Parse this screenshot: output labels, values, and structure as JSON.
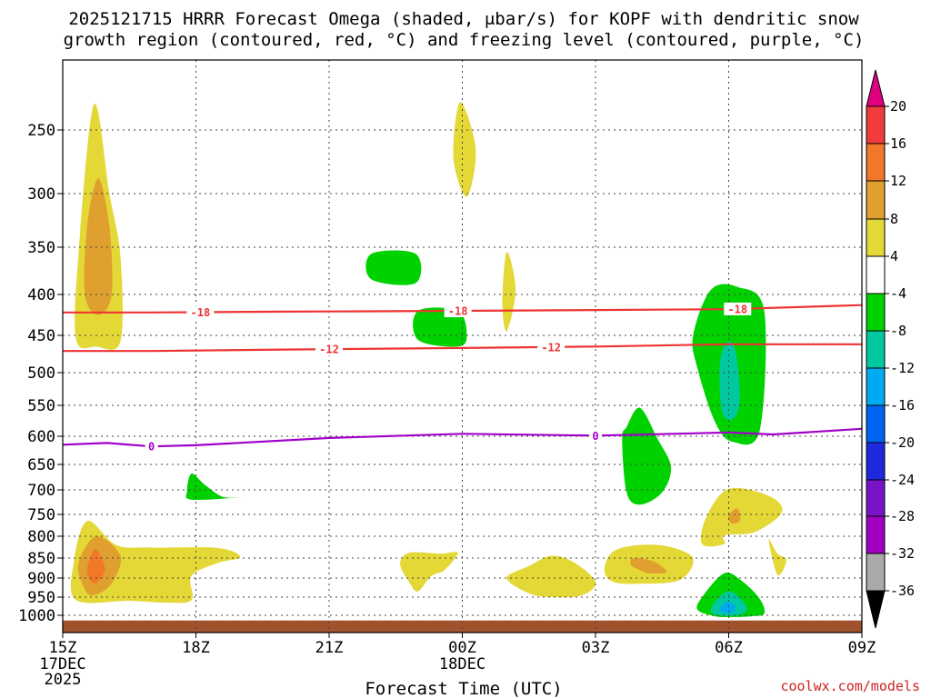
{
  "chart_data": {
    "type": "heatmap",
    "title_line1": "2025121715 HRRR Forecast Omega (shaded, μbar/s) for KOPF with dendritic snow",
    "title_line2": "growth region (contoured, red, °C) and freezing level (contoured, purple, °C)",
    "xlabel": "Forecast Time (UTC)",
    "credit": "coolwx.com/models",
    "x_range_hours": [
      0,
      18
    ],
    "x_ticks": [
      {
        "hour": 0,
        "label": "15Z",
        "sub1": "17DEC",
        "sub2": "2025"
      },
      {
        "hour": 3,
        "label": "18Z",
        "sub1": "",
        "sub2": ""
      },
      {
        "hour": 6,
        "label": "21Z",
        "sub1": "",
        "sub2": ""
      },
      {
        "hour": 9,
        "label": "00Z",
        "sub1": "18DEC",
        "sub2": ""
      },
      {
        "hour": 12,
        "label": "03Z",
        "sub1": "",
        "sub2": ""
      },
      {
        "hour": 15,
        "label": "06Z",
        "sub1": "",
        "sub2": ""
      },
      {
        "hour": 18,
        "label": "09Z",
        "sub1": "",
        "sub2": ""
      }
    ],
    "y_range_hpa": [
      1050,
      195
    ],
    "y_ticks": [
      {
        "p": 250,
        "label": "250"
      },
      {
        "p": 300,
        "label": "300"
      },
      {
        "p": 350,
        "label": "350"
      },
      {
        "p": 400,
        "label": "400"
      },
      {
        "p": 450,
        "label": "450"
      },
      {
        "p": 500,
        "label": "500"
      },
      {
        "p": 550,
        "label": "550"
      },
      {
        "p": 600,
        "label": "600"
      },
      {
        "p": 650,
        "label": "650"
      },
      {
        "p": 700,
        "label": "700"
      },
      {
        "p": 750,
        "label": "750"
      },
      {
        "p": 800,
        "label": "800"
      },
      {
        "p": 850,
        "label": "850"
      },
      {
        "p": 900,
        "label": "900"
      },
      {
        "p": 950,
        "label": "950"
      },
      {
        "p": 1000,
        "label": "1000"
      }
    ],
    "colorbar": {
      "labels": [
        "20",
        "16",
        "12",
        "8",
        "4",
        "-4",
        "-8",
        "-12",
        "-16",
        "-20",
        "-24",
        "-28",
        "-32",
        "-36"
      ],
      "colors": [
        "#e0007f",
        "#f03c3c",
        "#f07828",
        "#e0a030",
        "#e4d836",
        "#ffffff",
        "#00d200",
        "#00c8a0",
        "#00aaf0",
        "#0064f0",
        "#1e28dc",
        "#7814c8",
        "#a000c0",
        "#aaaaaa",
        "#000000"
      ]
    },
    "contours": [
      {
        "name": "dgz-minus18",
        "label": "-18",
        "color": "#ee3333",
        "points": [
          [
            0,
            422
          ],
          [
            2,
            422
          ],
          [
            5,
            421
          ],
          [
            9,
            420
          ],
          [
            12,
            419
          ],
          [
            15,
            418
          ],
          [
            18,
            413
          ]
        ],
        "label_hours": [
          3.1,
          8.9,
          15.2
        ]
      },
      {
        "name": "dgz-minus12",
        "label": "-12",
        "color": "#ee3333",
        "points": [
          [
            0,
            471
          ],
          [
            2,
            471
          ],
          [
            5,
            469
          ],
          [
            9,
            467
          ],
          [
            12,
            465
          ],
          [
            15,
            462
          ],
          [
            18,
            462
          ]
        ],
        "label_hours": [
          6,
          11
        ]
      },
      {
        "name": "freezing-level-0",
        "label": "0",
        "color": "#a000c8",
        "points": [
          [
            0,
            615
          ],
          [
            1,
            612
          ],
          [
            2,
            618
          ],
          [
            3,
            616
          ],
          [
            6,
            603
          ],
          [
            9,
            596
          ],
          [
            12,
            599
          ],
          [
            15,
            594
          ],
          [
            16,
            597
          ],
          [
            18,
            588
          ]
        ],
        "label_hours": [
          2,
          12
        ]
      }
    ],
    "shaded_regions": [
      {
        "name": "rise-4-early-upper",
        "value": 4,
        "points": [
          [
            0.3,
            455
          ],
          [
            0.35,
            360
          ],
          [
            0.7,
            230
          ],
          [
            1.05,
            300
          ],
          [
            1.3,
            360
          ],
          [
            1.3,
            458
          ],
          [
            0.75,
            465
          ]
        ]
      },
      {
        "name": "rise-8-early-upper",
        "value": 8,
        "points": [
          [
            0.5,
            400
          ],
          [
            0.55,
            330
          ],
          [
            0.8,
            288
          ],
          [
            1.05,
            330
          ],
          [
            1.1,
            400
          ],
          [
            0.8,
            425
          ]
        ]
      },
      {
        "name": "rise-4-00z-top",
        "value": 4,
        "points": [
          [
            8.8,
            272
          ],
          [
            8.95,
            228
          ],
          [
            9.3,
            265
          ],
          [
            9.1,
            303
          ]
        ]
      },
      {
        "name": "rise-4-01z-mid",
        "value": 4,
        "points": [
          [
            9.9,
            410
          ],
          [
            10.0,
            355
          ],
          [
            10.2,
            395
          ],
          [
            10.0,
            445
          ]
        ]
      },
      {
        "name": "rise-4-early-low",
        "value": 4,
        "points": [
          [
            0.3,
            958
          ],
          [
            0.25,
            860
          ],
          [
            0.55,
            765
          ],
          [
            1.2,
            820
          ],
          [
            2.0,
            826
          ],
          [
            3.5,
            827
          ],
          [
            4.0,
            848
          ],
          [
            3.5,
            862
          ],
          [
            2.9,
            895
          ],
          [
            2.9,
            958
          ],
          [
            2.3,
            965
          ],
          [
            1.5,
            960
          ]
        ]
      },
      {
        "name": "rise-8-early-low",
        "value": 8,
        "points": [
          [
            0.5,
            930
          ],
          [
            0.35,
            865
          ],
          [
            0.75,
            800
          ],
          [
            1.3,
            845
          ],
          [
            1.1,
            915
          ],
          [
            0.7,
            945
          ]
        ]
      },
      {
        "name": "rise-12-early-low",
        "value": 12,
        "points": [
          [
            0.55,
            885
          ],
          [
            0.6,
            855
          ],
          [
            0.75,
            830
          ],
          [
            0.95,
            875
          ],
          [
            0.8,
            910
          ],
          [
            0.65,
            910
          ]
        ]
      },
      {
        "name": "rise-4-2230z",
        "value": 4,
        "points": [
          [
            7.6,
            865
          ],
          [
            7.8,
            838
          ],
          [
            8.5,
            840
          ],
          [
            8.9,
            838
          ],
          [
            8.6,
            880
          ],
          [
            8.3,
            895
          ],
          [
            8.0,
            935
          ],
          [
            7.8,
            910
          ]
        ]
      },
      {
        "name": "rise-4-02z",
        "value": 4,
        "points": [
          [
            10.0,
            900
          ],
          [
            10.5,
            870
          ],
          [
            11.0,
            845
          ],
          [
            11.5,
            860
          ],
          [
            12.0,
            910
          ],
          [
            11.7,
            945
          ],
          [
            11.0,
            950
          ],
          [
            10.5,
            940
          ]
        ]
      },
      {
        "name": "rise-4-04z",
        "value": 4,
        "points": [
          [
            12.2,
            880
          ],
          [
            12.4,
            835
          ],
          [
            13.0,
            820
          ],
          [
            13.7,
            825
          ],
          [
            14.2,
            852
          ],
          [
            13.9,
            905
          ],
          [
            13.0,
            915
          ],
          [
            12.4,
            910
          ]
        ]
      },
      {
        "name": "rise-8-04z",
        "value": 8,
        "points": [
          [
            12.8,
            868
          ],
          [
            12.85,
            850
          ],
          [
            13.3,
            858
          ],
          [
            13.6,
            885
          ],
          [
            13.2,
            888
          ],
          [
            13.0,
            880
          ]
        ]
      },
      {
        "name": "rise-4-06z",
        "value": 4,
        "points": [
          [
            14.4,
            818
          ],
          [
            14.5,
            755
          ],
          [
            15.0,
            698
          ],
          [
            15.9,
            712
          ],
          [
            16.2,
            745
          ],
          [
            15.6,
            790
          ],
          [
            14.9,
            798
          ],
          [
            14.9,
            818
          ]
        ]
      },
      {
        "name": "rise-4-07z-tail",
        "value": 4,
        "points": [
          [
            15.9,
            808
          ],
          [
            16.1,
            840
          ],
          [
            16.3,
            855
          ],
          [
            16.1,
            892
          ]
        ]
      },
      {
        "name": "rise-8-06z-dot",
        "value": 8,
        "points": [
          [
            15.0,
            752
          ],
          [
            15.2,
            738
          ],
          [
            15.25,
            765
          ],
          [
            15.05,
            770
          ]
        ]
      },
      {
        "name": "sink-4-2230z",
        "value": -4,
        "points": [
          [
            6.95,
            357
          ],
          [
            7.95,
            357
          ],
          [
            7.95,
            388
          ],
          [
            6.95,
            384
          ]
        ]
      },
      {
        "name": "sink-4-00z",
        "value": -4,
        "points": [
          [
            8.0,
            420
          ],
          [
            8.9,
            420
          ],
          [
            9.1,
            450
          ],
          [
            8.9,
            465
          ],
          [
            8.0,
            456
          ]
        ]
      },
      {
        "name": "sink-4-18z",
        "value": -4,
        "points": [
          [
            2.8,
            702
          ],
          [
            2.9,
            668
          ],
          [
            3.2,
            690
          ],
          [
            3.6,
            714
          ],
          [
            4.0,
            715
          ],
          [
            2.9,
            720
          ]
        ]
      },
      {
        "name": "sink-4-04z",
        "value": -4,
        "points": [
          [
            12.6,
            605
          ],
          [
            12.7,
            585
          ],
          [
            13.0,
            554
          ],
          [
            13.4,
            605
          ],
          [
            13.7,
            655
          ],
          [
            13.5,
            705
          ],
          [
            13.0,
            730
          ],
          [
            12.7,
            705
          ]
        ]
      },
      {
        "name": "sink-4-06z",
        "value": -4,
        "points": [
          [
            14.2,
            450
          ],
          [
            14.6,
            395
          ],
          [
            15.2,
            392
          ],
          [
            15.8,
            420
          ],
          [
            15.7,
            590
          ],
          [
            15.1,
            610
          ],
          [
            14.7,
            578
          ],
          [
            14.3,
            495
          ]
        ]
      },
      {
        "name": "sink-8-06z",
        "value": -8,
        "points": [
          [
            14.8,
            490
          ],
          [
            14.95,
            460
          ],
          [
            15.15,
            470
          ],
          [
            15.25,
            540
          ],
          [
            15.1,
            572
          ],
          [
            14.85,
            560
          ]
        ]
      },
      {
        "name": "sink-4-06z-low",
        "value": -4,
        "points": [
          [
            14.3,
            985
          ],
          [
            14.4,
            950
          ],
          [
            14.9,
            888
          ],
          [
            15.3,
            908
          ],
          [
            15.7,
            955
          ],
          [
            15.8,
            995
          ],
          [
            15.5,
            1003
          ],
          [
            15.1,
            1005
          ],
          [
            14.7,
            1003
          ]
        ]
      },
      {
        "name": "sink-8-06z-low",
        "value": -8,
        "points": [
          [
            14.6,
            990
          ],
          [
            14.75,
            955
          ],
          [
            15.05,
            935
          ],
          [
            15.4,
            975
          ],
          [
            15.3,
            997
          ],
          [
            14.9,
            1002
          ]
        ]
      },
      {
        "name": "sink-12-06z-low",
        "value": -12,
        "points": [
          [
            14.8,
            987
          ],
          [
            14.95,
            963
          ],
          [
            15.15,
            975
          ],
          [
            15.05,
            994
          ]
        ]
      }
    ],
    "terrain": {
      "color": "#a0522d",
      "top_hpa": 1015
    }
  }
}
